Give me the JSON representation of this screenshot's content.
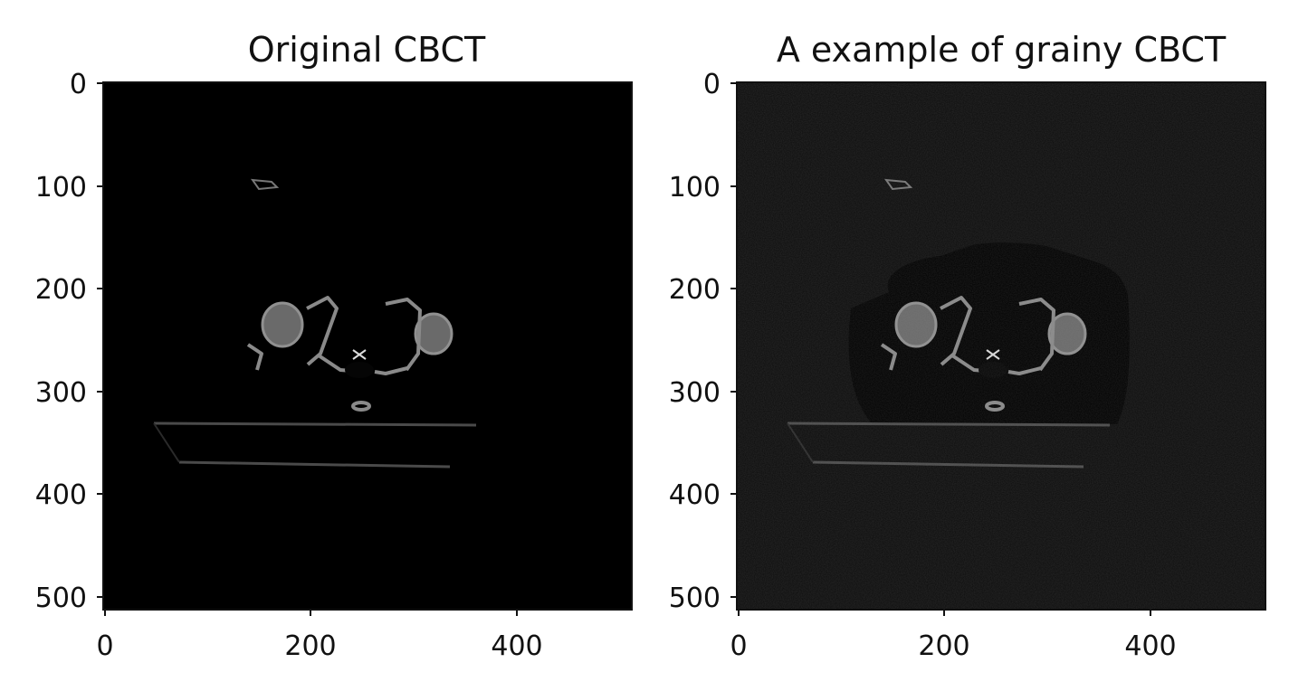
{
  "panels": [
    {
      "title": "Original CBCT",
      "x_ticks": [
        "0",
        "200",
        "400"
      ],
      "y_ticks": [
        "0",
        "100",
        "200",
        "300",
        "400",
        "500"
      ],
      "grainy": false
    },
    {
      "title": "A example of grainy CBCT",
      "x_ticks": [
        "0",
        "200",
        "400"
      ],
      "y_ticks": [
        "0",
        "100",
        "200",
        "300",
        "400",
        "500"
      ],
      "grainy": true
    }
  ],
  "colors": {
    "background": "#ffffff",
    "image_black": "#000000",
    "grainy_black": "#0c0c0c",
    "soft_tissue": "#3a3a3a",
    "grainy_tissue": "#565656",
    "bone": "#8a8a8a"
  }
}
